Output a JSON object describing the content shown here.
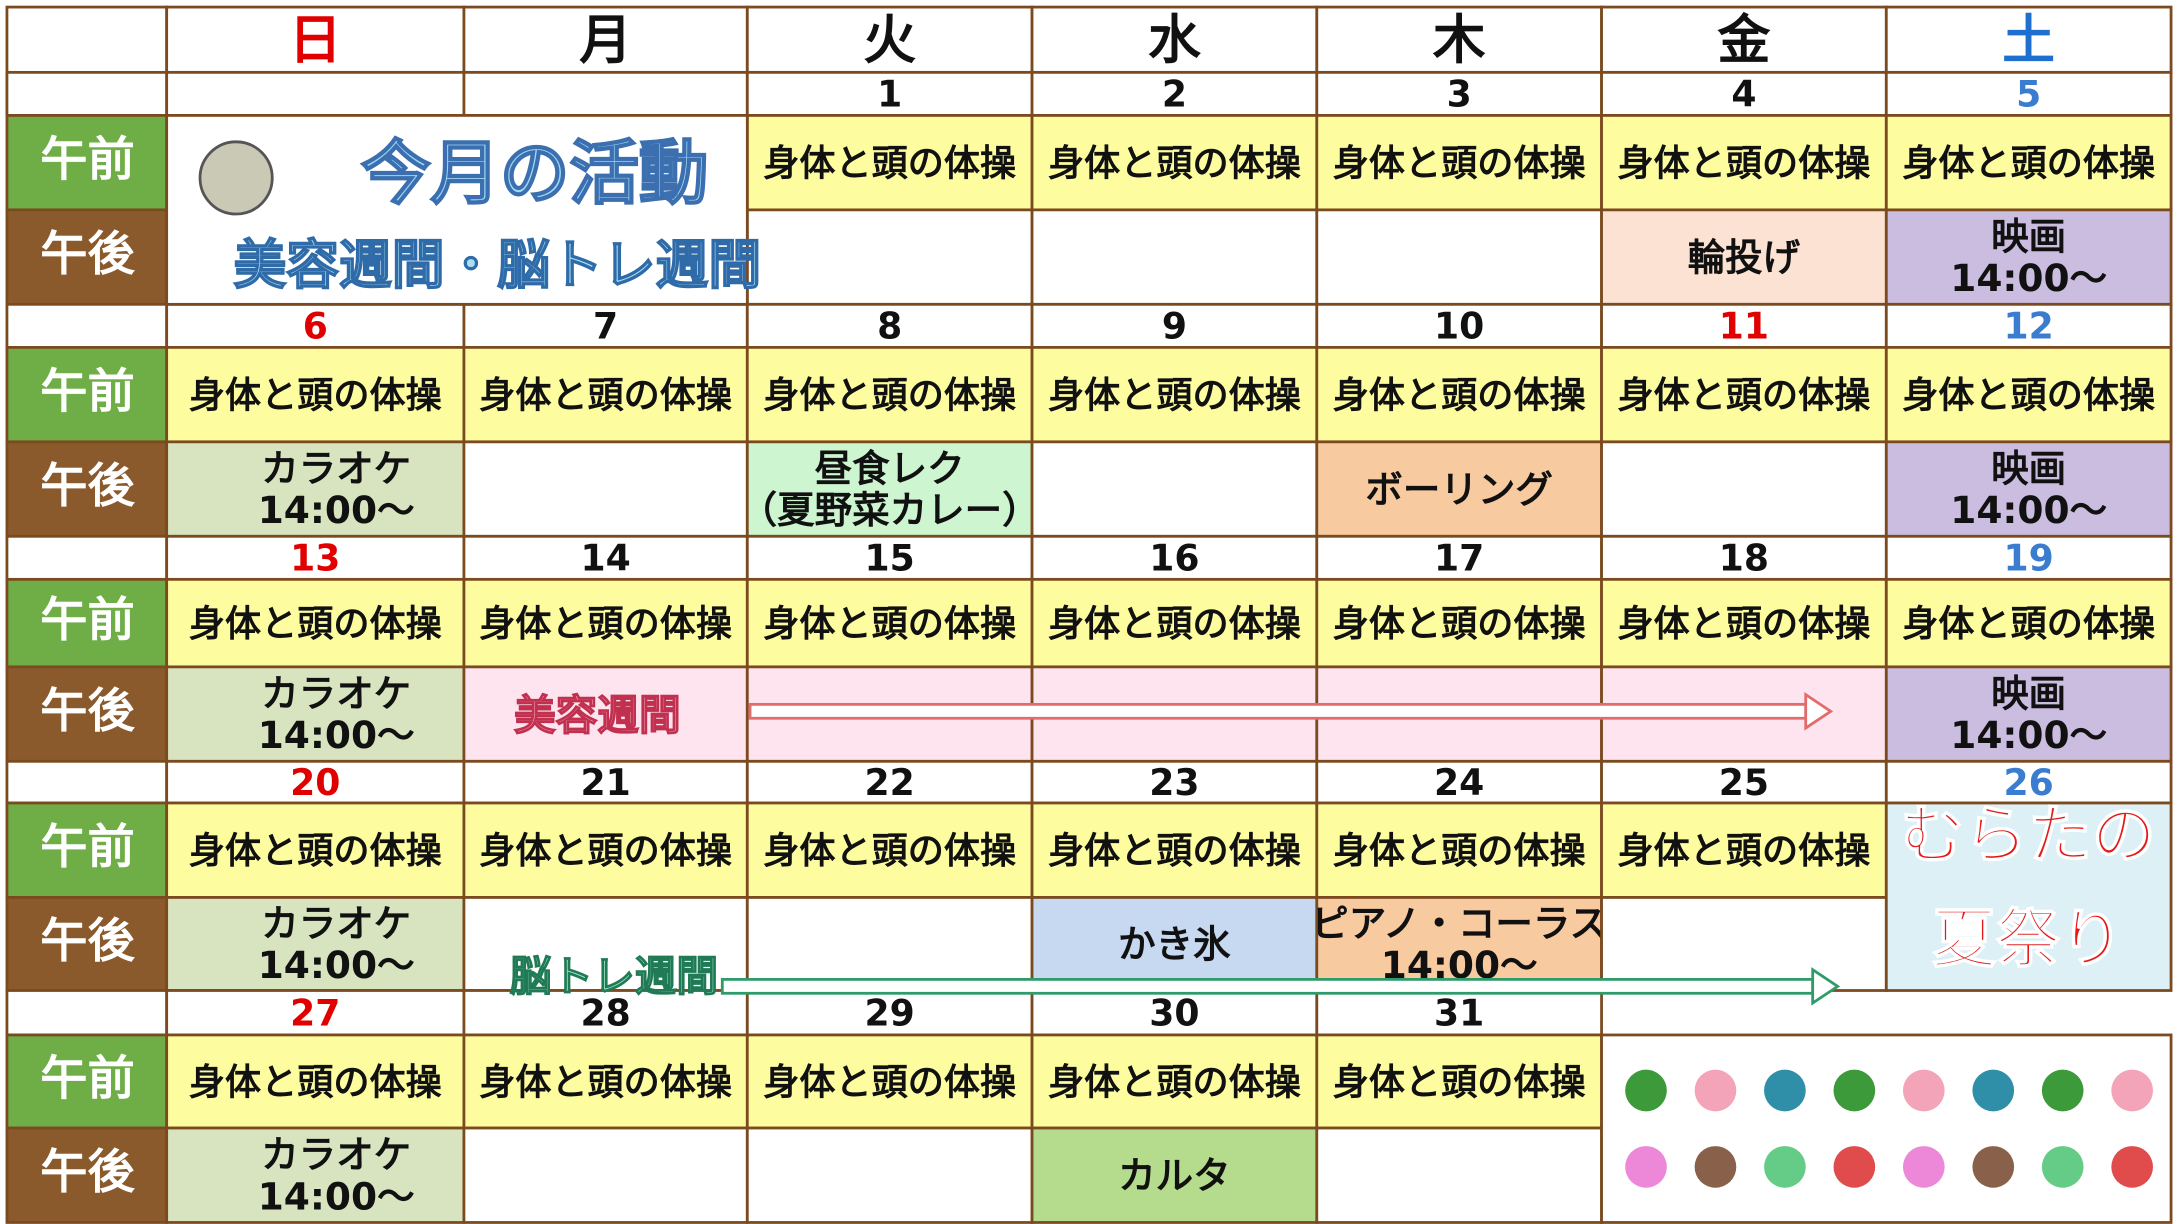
{
  "weekdays": [
    "日",
    "月",
    "火",
    "水",
    "木",
    "金",
    "土"
  ],
  "labels": {
    "am": "午前",
    "pm": "午後"
  },
  "header": {
    "title": "今月の活動",
    "subtitle": "美容週間・脳トレ週間"
  },
  "weeks": [
    {
      "dates": [
        null,
        null,
        1,
        2,
        3,
        4,
        5
      ],
      "am": [
        null,
        null,
        "身体と頭の体操",
        "身体と頭の体操",
        "身体と頭の体操",
        "身体と頭の体操",
        "身体と頭の体操"
      ],
      "pm": [
        null,
        null,
        null,
        null,
        null,
        {
          "lines": [
            "輪投げ"
          ],
          "color": "#fbe2d2"
        },
        {
          "lines": [
            "映画",
            "14:00〜"
          ],
          "color": "#cbbde0"
        }
      ]
    },
    {
      "dates": [
        6,
        7,
        8,
        9,
        10,
        11,
        12
      ],
      "am": [
        "身体と頭の体操",
        "身体と頭の体操",
        "身体と頭の体操",
        "身体と頭の体操",
        "身体と頭の体操",
        "身体と頭の体操",
        "身体と頭の体操"
      ],
      "pm": [
        {
          "lines": [
            "カラオケ",
            "14:00〜"
          ],
          "color": "#d8e4bf"
        },
        null,
        {
          "lines": [
            "昼食レク",
            "（夏野菜カレー）"
          ],
          "color": "#ccf5d0"
        },
        null,
        {
          "lines": [
            "ボーリング"
          ],
          "color": "#f8caa0"
        },
        null,
        {
          "lines": [
            "映画",
            "14:00〜"
          ],
          "color": "#cbbde0"
        }
      ]
    },
    {
      "dates": [
        13,
        14,
        15,
        16,
        17,
        18,
        19
      ],
      "am": [
        "身体と頭の体操",
        "身体と頭の体操",
        "身体と頭の体操",
        "身体と頭の体操",
        "身体と頭の体操",
        "身体と頭の体操",
        "身体と頭の体操"
      ],
      "pm": [
        {
          "lines": [
            "カラオケ",
            "14:00〜"
          ],
          "color": "#d8e4bf"
        },
        {
          "color": "#fde4ee"
        },
        {
          "color": "#fde4ee"
        },
        {
          "color": "#fde4ee"
        },
        {
          "color": "#fde4ee"
        },
        {
          "color": "#fde4ee"
        },
        {
          "lines": [
            "映画",
            "14:00〜"
          ],
          "color": "#cbbde0"
        }
      ]
    },
    {
      "dates": [
        20,
        21,
        22,
        23,
        24,
        25,
        26
      ],
      "am": [
        "身体と頭の体操",
        "身体と頭の体操",
        "身体と頭の体操",
        "身体と頭の体操",
        "身体と頭の体操",
        "身体と頭の体操",
        null
      ],
      "pm": [
        {
          "lines": [
            "カラオケ",
            "14:00〜"
          ],
          "color": "#d8e4bf"
        },
        null,
        null,
        {
          "lines": [
            "かき氷"
          ],
          "color": "#c6d9f1"
        },
        {
          "lines": [
            "ピアノ・コーラス",
            "14:00〜"
          ],
          "color": "#f8caa0"
        },
        null,
        null
      ]
    },
    {
      "dates": [
        27,
        28,
        29,
        30,
        31,
        null,
        null
      ],
      "am": [
        "身体と頭の体操",
        "身体と頭の体操",
        "身体と頭の体操",
        "身体と頭の体操",
        "身体と頭の体操",
        null,
        null
      ],
      "pm": [
        {
          "lines": [
            "カラオケ",
            "14:00〜"
          ],
          "color": "#d8e4bf"
        },
        null,
        null,
        {
          "lines": [
            "カルタ"
          ],
          "color": "#b4dc8c"
        },
        null,
        null,
        null
      ]
    }
  ],
  "banners": [
    "美容週間",
    "脳トレ週間"
  ],
  "festival": [
    "むらたの",
    "夏祭り"
  ]
}
